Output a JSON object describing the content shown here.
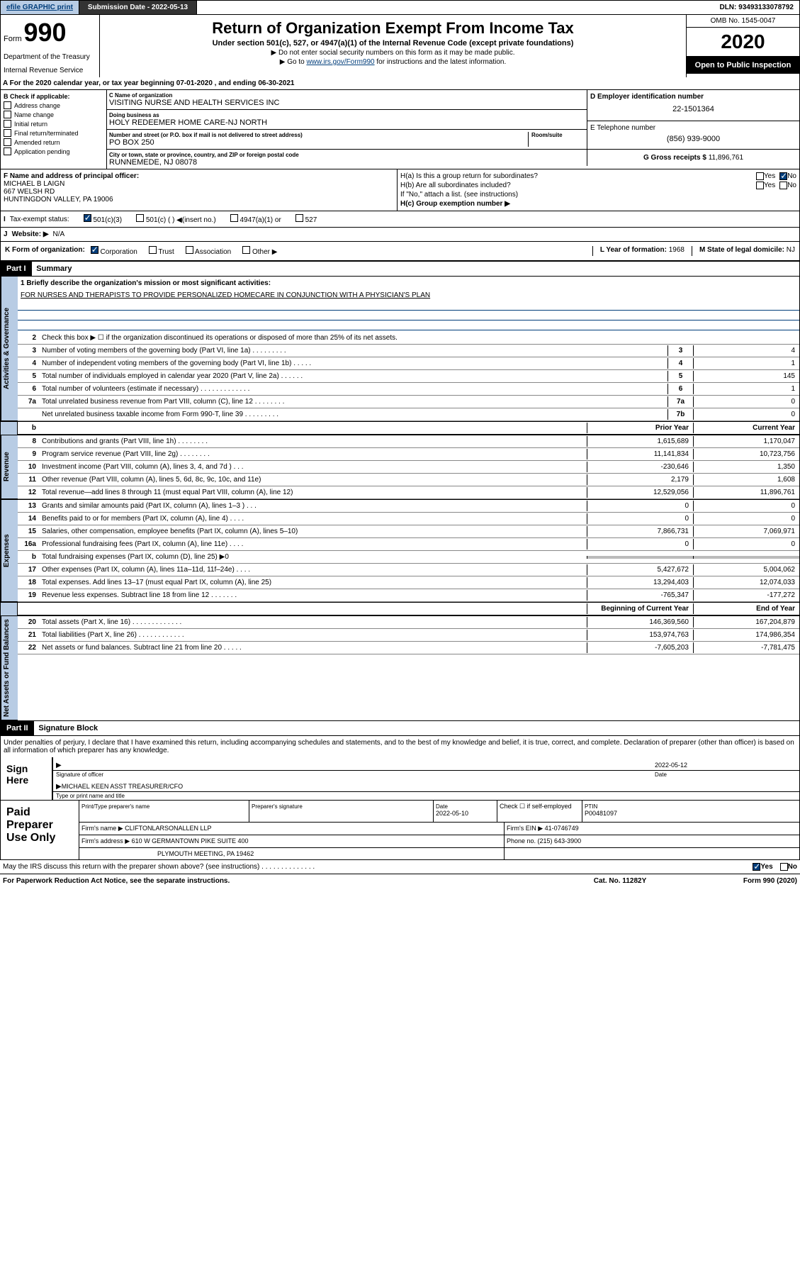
{
  "topbar": {
    "efile": "efile GRAPHIC print",
    "sub_label": "Submission Date - ",
    "sub_date": "2022-05-13",
    "dln": "DLN: 93493133078792"
  },
  "header": {
    "form_word": "Form",
    "form_num": "990",
    "dept": "Department of the Treasury",
    "irs": "Internal Revenue Service",
    "title": "Return of Organization Exempt From Income Tax",
    "subtitle": "Under section 501(c), 527, or 4947(a)(1) of the Internal Revenue Code (except private foundations)",
    "note1": "▶ Do not enter social security numbers on this form as it may be made public.",
    "note2a": "▶ Go to ",
    "note2_link": "www.irs.gov/Form990",
    "note2b": " for instructions and the latest information.",
    "omb": "OMB No. 1545-0047",
    "year": "2020",
    "inspect": "Open to Public Inspection"
  },
  "line_a": "A For the 2020 calendar year, or tax year beginning 07-01-2020    , and ending 06-30-2021",
  "box_b": {
    "label": "B Check if applicable:",
    "items": [
      "Address change",
      "Name change",
      "Initial return",
      "Final return/terminated",
      "Amended return",
      "Application pending"
    ]
  },
  "box_c": {
    "name_lbl": "C Name of organization",
    "name": "VISITING NURSE AND HEALTH SERVICES INC",
    "dba_lbl": "Doing business as",
    "dba": "HOLY REDEEMER HOME CARE-NJ NORTH",
    "addr_lbl": "Number and street (or P.O. box if mail is not delivered to street address)",
    "room_lbl": "Room/suite",
    "addr": "PO BOX 250",
    "city_lbl": "City or town, state or province, country, and ZIP or foreign postal code",
    "city": "RUNNEMEDE, NJ  08078"
  },
  "box_d": {
    "lbl": "D Employer identification number",
    "val": "22-1501364"
  },
  "box_e": {
    "lbl": "E Telephone number",
    "val": "(856) 939-9000"
  },
  "box_g": {
    "lbl": "G Gross receipts $ ",
    "val": "11,896,761"
  },
  "box_f": {
    "lbl": "F  Name and address of principal officer:",
    "name": "MICHAEL B LAIGN",
    "addr1": "667 WELSH RD",
    "addr2": "HUNTINGDON VALLEY, PA  19006"
  },
  "box_h": {
    "ha": "H(a)  Is this a group return for subordinates?",
    "hb": "H(b)  Are all subordinates included?",
    "hb_note": "If \"No,\" attach a list. (see instructions)",
    "hc": "H(c)  Group exemption number ▶",
    "yes": "Yes",
    "no": "No"
  },
  "row_i": {
    "lbl": "I",
    "txt": "Tax-exempt status:",
    "opts": [
      "501(c)(3)",
      "501(c) (  ) ◀(insert no.)",
      "4947(a)(1) or",
      "527"
    ]
  },
  "row_j": {
    "lbl": "J",
    "txt": "Website: ▶",
    "val": "N/A"
  },
  "row_k": {
    "lbl": "K Form of organization:",
    "opts": [
      "Corporation",
      "Trust",
      "Association",
      "Other ▶"
    ]
  },
  "row_l": {
    "lbl": "L Year of formation: ",
    "val": "1968"
  },
  "row_m": {
    "lbl": "M State of legal domicile: ",
    "val": "NJ"
  },
  "part1": {
    "hdr": "Part I",
    "title": "Summary"
  },
  "summary": {
    "side_labels": [
      "Activities & Governance",
      "Revenue",
      "Expenses",
      "Net Assets or Fund Balances"
    ],
    "q1": "1  Briefly describe the organization's mission or most significant activities:",
    "mission": "FOR NURSES AND THERAPISTS TO PROVIDE PERSONALIZED HOMECARE IN CONJUNCTION WITH A PHYSICIAN'S PLAN",
    "q2": "Check this box ▶ ☐  if the organization discontinued its operations or disposed of more than 25% of its net assets.",
    "lines_top": [
      {
        "n": "3",
        "t": "Number of voting members of the governing body (Part VI, line 1a)   .    .    .    .    .    .    .    .    .",
        "b": "3",
        "v": "4"
      },
      {
        "n": "4",
        "t": "Number of independent voting members of the governing body (Part VI, line 1b)    .    .    .    .    .",
        "b": "4",
        "v": "1"
      },
      {
        "n": "5",
        "t": "Total number of individuals employed in calendar year 2020 (Part V, line 2a)   .    .    .    .    .    .",
        "b": "5",
        "v": "145"
      },
      {
        "n": "6",
        "t": "Total number of volunteers (estimate if necessary)    .    .    .    .    .    .    .    .    .    .    .    .    .",
        "b": "6",
        "v": "1"
      },
      {
        "n": "7a",
        "t": "Total unrelated business revenue from Part VIII, column (C), line 12   .    .    .    .    .    .    .    .",
        "b": "7a",
        "v": "0"
      },
      {
        "n": "",
        "t": "Net unrelated business taxable income from Form 990-T, line 39    .    .    .    .    .    .    .    .    .",
        "b": "7b",
        "v": "0"
      }
    ],
    "hdr_prior": "Prior Year",
    "hdr_curr": "Current Year",
    "rev": [
      {
        "n": "8",
        "t": "Contributions and grants (Part VIII, line 1h)    .    .    .    .    .    .    .    .",
        "p": "1,615,689",
        "c": "1,170,047"
      },
      {
        "n": "9",
        "t": "Program service revenue (Part VIII, line 2g)    .    .    .    .    .    .    .    .",
        "p": "11,141,834",
        "c": "10,723,756"
      },
      {
        "n": "10",
        "t": "Investment income (Part VIII, column (A), lines 3, 4, and 7d )    .    .    .",
        "p": "-230,646",
        "c": "1,350"
      },
      {
        "n": "11",
        "t": "Other revenue (Part VIII, column (A), lines 5, 6d, 8c, 9c, 10c, and 11e)",
        "p": "2,179",
        "c": "1,608"
      },
      {
        "n": "12",
        "t": "Total revenue—add lines 8 through 11 (must equal Part VIII, column (A), line 12)",
        "p": "12,529,056",
        "c": "11,896,761"
      }
    ],
    "exp": [
      {
        "n": "13",
        "t": "Grants and similar amounts paid (Part IX, column (A), lines 1–3 )   .    .    .",
        "p": "0",
        "c": "0"
      },
      {
        "n": "14",
        "t": "Benefits paid to or for members (Part IX, column (A), line 4)   .    .    .    .",
        "p": "0",
        "c": "0"
      },
      {
        "n": "15",
        "t": "Salaries, other compensation, employee benefits (Part IX, column (A), lines 5–10)",
        "p": "7,866,731",
        "c": "7,069,971"
      },
      {
        "n": "16a",
        "t": "Professional fundraising fees (Part IX, column (A), line 11e)    .    .    .    .",
        "p": "0",
        "c": "0"
      },
      {
        "n": "b",
        "t": "Total fundraising expenses (Part IX, column (D), line 25) ▶0",
        "p": "",
        "c": "",
        "grey": true
      },
      {
        "n": "17",
        "t": "Other expenses (Part IX, column (A), lines 11a–11d, 11f–24e)   .    .    .    .",
        "p": "5,427,672",
        "c": "5,004,062"
      },
      {
        "n": "18",
        "t": "Total expenses. Add lines 13–17 (must equal Part IX, column (A), line 25)",
        "p": "13,294,403",
        "c": "12,074,033"
      },
      {
        "n": "19",
        "t": "Revenue less expenses. Subtract line 18 from line 12   .    .    .    .    .    .    .",
        "p": "-765,347",
        "c": "-177,272"
      }
    ],
    "hdr_beg": "Beginning of Current Year",
    "hdr_end": "End of Year",
    "net": [
      {
        "n": "20",
        "t": "Total assets (Part X, line 16)    .    .    .    .    .    .    .    .    .    .    .    .    .",
        "p": "146,369,560",
        "c": "167,204,879"
      },
      {
        "n": "21",
        "t": "Total liabilities (Part X, line 26)   .    .    .    .    .    .    .    .    .    .    .    .",
        "p": "153,974,763",
        "c": "174,986,354"
      },
      {
        "n": "22",
        "t": "Net assets or fund balances. Subtract line 21 from line 20   .    .    .    .    .",
        "p": "-7,605,203",
        "c": "-7,781,475"
      }
    ]
  },
  "part2": {
    "hdr": "Part II",
    "title": "Signature Block"
  },
  "sig": {
    "intro": "Under penalties of perjury, I declare that I have examined this return, including accompanying schedules and statements, and to the best of my knowledge and belief, it is true, correct, and complete. Declaration of preparer (other than officer) is based on all information of which preparer has any knowledge.",
    "sign_here": "Sign Here",
    "sig_officer": "Signature of officer",
    "date_lbl": "Date",
    "date": "2022-05-12",
    "name": "MICHAEL KEEN  ASST TREASURER/CFO",
    "name_lbl": "Type or print name and title"
  },
  "paid": {
    "lbl": "Paid Preparer Use Only",
    "pt_name_lbl": "Print/Type preparer's name",
    "sig_lbl": "Preparer's signature",
    "date_lbl": "Date",
    "date": "2022-05-10",
    "chk_lbl": "Check ☐  if self-employed",
    "ptin_lbl": "PTIN",
    "ptin": "P00481097",
    "firm_lbl": "Firm's name     ▶",
    "firm": "CLIFTONLARSONALLEN LLP",
    "ein_lbl": "Firm's EIN ▶ ",
    "ein": "41-0746749",
    "addr_lbl": "Firm's address ▶",
    "addr1": "610 W GERMANTOWN PIKE SUITE 400",
    "addr2": "PLYMOUTH MEETING, PA  19462",
    "phone_lbl": "Phone no. ",
    "phone": "(215) 643-3900"
  },
  "discuss": {
    "txt": "May the IRS discuss this return with the preparer shown above? (see instructions)    .    .    .    .    .    .    .    .    .    .    .    .    .    .",
    "yes": "Yes",
    "no": "No"
  },
  "footer": {
    "left": "For Paperwork Reduction Act Notice, see the separate instructions.",
    "mid": "Cat. No. 11282Y",
    "right": "Form 990 (2020)"
  }
}
